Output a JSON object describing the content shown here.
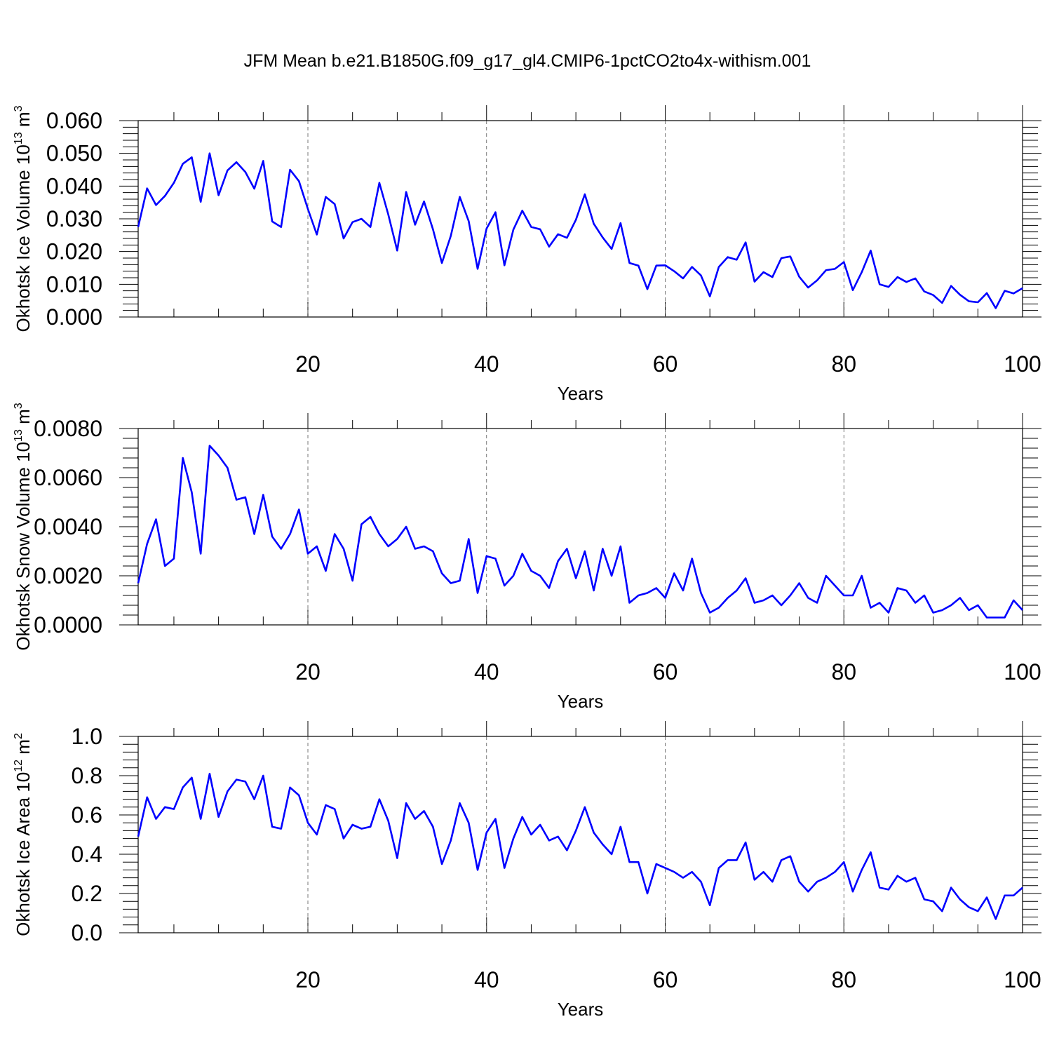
{
  "title": "JFM Mean b.e21.B1850G.f09_g17_gl4.CMIP6-1pctCO2to4x-withism.001",
  "line_color": "#0000ff",
  "chart_data": [
    {
      "type": "line",
      "ylabel": "Okhotsk Ice Volume 10",
      "ylabel_exp": "13",
      "ylabel_unit": " m",
      "ylabel_unit_exp": "3",
      "xlabel": "Years",
      "xlim": [
        1,
        100
      ],
      "ylim": [
        0,
        0.06
      ],
      "x_ticks": [
        "20",
        "40",
        "60",
        "80",
        "100"
      ],
      "y_ticks": [
        "0.000",
        "0.010",
        "0.020",
        "0.030",
        "0.040",
        "0.050",
        "0.060"
      ],
      "series": [
        {
          "values": [
            0.0275,
            0.0393,
            0.0342,
            0.037,
            0.041,
            0.0468,
            0.0488,
            0.0352,
            0.05,
            0.0372,
            0.0448,
            0.0473,
            0.0443,
            0.0392,
            0.0477,
            0.0292,
            0.0275,
            0.045,
            0.0415,
            0.033,
            0.0252,
            0.0367,
            0.0345,
            0.024,
            0.029,
            0.03,
            0.0275,
            0.041,
            0.0313,
            0.0203,
            0.0382,
            0.0282,
            0.0353,
            0.0268,
            0.0165,
            0.0248,
            0.0367,
            0.0293,
            0.0147,
            0.027,
            0.032,
            0.0158,
            0.0267,
            0.0325,
            0.0275,
            0.0268,
            0.0215,
            0.0253,
            0.0242,
            0.0297,
            0.0375,
            0.0285,
            0.0243,
            0.0208,
            0.0287,
            0.0165,
            0.0157,
            0.0085,
            0.0157,
            0.0158,
            0.014,
            0.0118,
            0.0153,
            0.0127,
            0.0063,
            0.0153,
            0.0183,
            0.0175,
            0.0228,
            0.0108,
            0.0137,
            0.0122,
            0.018,
            0.0185,
            0.0123,
            0.009,
            0.0112,
            0.0143,
            0.0147,
            0.0168,
            0.0082,
            0.0137,
            0.0203,
            0.01,
            0.0092,
            0.0122,
            0.0107,
            0.0118,
            0.0078,
            0.0067,
            0.0043,
            0.0095,
            0.0068,
            0.0048,
            0.0045,
            0.0073,
            0.0027,
            0.008,
            0.0072,
            0.0088
          ]
        }
      ]
    },
    {
      "type": "line",
      "ylabel": "Okhotsk Snow Volume 10",
      "ylabel_exp": "13",
      "ylabel_unit": " m",
      "ylabel_unit_exp": "3",
      "xlabel": "Years",
      "xlim": [
        1,
        100
      ],
      "ylim": [
        0,
        0.008
      ],
      "x_ticks": [
        "20",
        "40",
        "60",
        "80",
        "100"
      ],
      "y_ticks": [
        "0.0000",
        "0.0020",
        "0.0040",
        "0.0060",
        "0.0080"
      ],
      "series": [
        {
          "values": [
            0.0017,
            0.0033,
            0.0043,
            0.0024,
            0.0027,
            0.0068,
            0.0054,
            0.0029,
            0.0073,
            0.0069,
            0.0064,
            0.0051,
            0.0052,
            0.0037,
            0.0053,
            0.0036,
            0.0031,
            0.0037,
            0.0047,
            0.0029,
            0.0032,
            0.0022,
            0.0037,
            0.0031,
            0.0018,
            0.0041,
            0.0044,
            0.0037,
            0.0032,
            0.0035,
            0.004,
            0.0031,
            0.0032,
            0.003,
            0.0021,
            0.0017,
            0.0018,
            0.0035,
            0.0013,
            0.0028,
            0.0027,
            0.0016,
            0.002,
            0.0029,
            0.0022,
            0.002,
            0.0015,
            0.0026,
            0.0031,
            0.0019,
            0.003,
            0.0014,
            0.0031,
            0.002,
            0.0032,
            0.0009,
            0.0012,
            0.0013,
            0.0015,
            0.0011,
            0.0021,
            0.0014,
            0.0027,
            0.0013,
            0.0005,
            0.0007,
            0.0011,
            0.0014,
            0.0019,
            0.0009,
            0.001,
            0.0012,
            0.0008,
            0.0012,
            0.0017,
            0.0011,
            0.0009,
            0.002,
            0.0016,
            0.0012,
            0.0012,
            0.002,
            0.0007,
            0.0009,
            0.0005,
            0.0015,
            0.0014,
            0.0009,
            0.0012,
            0.0005,
            0.0006,
            0.0008,
            0.0011,
            0.0006,
            0.0008,
            0.0003,
            0.0003,
            0.0003,
            0.001,
            0.0006
          ]
        }
      ]
    },
    {
      "type": "line",
      "ylabel": "Okhotsk Ice Area 10",
      "ylabel_exp": "12",
      "ylabel_unit": " m",
      "ylabel_unit_exp": "2",
      "xlabel": "Years",
      "xlim": [
        1,
        100
      ],
      "ylim": [
        0,
        1.0
      ],
      "x_ticks": [
        "20",
        "40",
        "60",
        "80",
        "100"
      ],
      "y_ticks": [
        "0.0",
        "0.2",
        "0.4",
        "0.6",
        "0.8",
        "1.0"
      ],
      "series": [
        {
          "values": [
            0.49,
            0.69,
            0.58,
            0.64,
            0.63,
            0.74,
            0.79,
            0.58,
            0.81,
            0.59,
            0.72,
            0.78,
            0.77,
            0.68,
            0.8,
            0.54,
            0.53,
            0.74,
            0.7,
            0.56,
            0.5,
            0.65,
            0.63,
            0.48,
            0.55,
            0.53,
            0.54,
            0.68,
            0.57,
            0.38,
            0.66,
            0.58,
            0.62,
            0.54,
            0.35,
            0.47,
            0.66,
            0.56,
            0.32,
            0.51,
            0.58,
            0.33,
            0.48,
            0.59,
            0.5,
            0.55,
            0.47,
            0.49,
            0.42,
            0.52,
            0.64,
            0.51,
            0.45,
            0.4,
            0.54,
            0.36,
            0.36,
            0.2,
            0.35,
            0.33,
            0.31,
            0.28,
            0.31,
            0.26,
            0.14,
            0.33,
            0.37,
            0.37,
            0.46,
            0.27,
            0.31,
            0.26,
            0.37,
            0.39,
            0.26,
            0.21,
            0.26,
            0.28,
            0.31,
            0.36,
            0.21,
            0.32,
            0.41,
            0.23,
            0.22,
            0.29,
            0.26,
            0.28,
            0.17,
            0.16,
            0.11,
            0.23,
            0.17,
            0.13,
            0.11,
            0.18,
            0.07,
            0.19,
            0.19,
            0.23
          ]
        }
      ]
    }
  ]
}
